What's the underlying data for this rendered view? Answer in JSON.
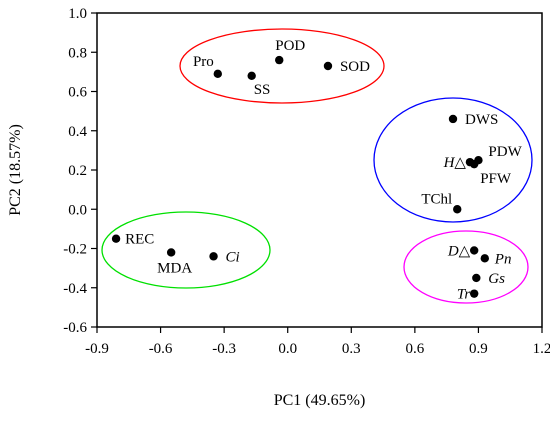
{
  "chart_data": {
    "type": "scatter",
    "xlabel": "PC1 (49.65%)",
    "ylabel": "PC2 (18.57%)",
    "xlim": [
      -0.9,
      1.2
    ],
    "ylim": [
      -0.6,
      1.0
    ],
    "xticks": [
      "-0.9",
      "-0.6",
      "-0.3",
      "0.0",
      "0.3",
      "0.6",
      "0.9",
      "1.2"
    ],
    "yticks": [
      "1.0",
      "0.8",
      "0.6",
      "0.4",
      "0.2",
      "0.0",
      "-0.2",
      "-0.4",
      "-0.6"
    ],
    "grid": false,
    "points": [
      {
        "label": "Pro",
        "x": -0.33,
        "y": 0.69,
        "italic": false
      },
      {
        "label": "SS",
        "x": -0.17,
        "y": 0.68,
        "italic": false
      },
      {
        "label": "POD",
        "x": -0.04,
        "y": 0.76,
        "italic": false
      },
      {
        "label": "SOD",
        "x": 0.19,
        "y": 0.73,
        "italic": false
      },
      {
        "label": "DWS",
        "x": 0.78,
        "y": 0.46,
        "italic": false
      },
      {
        "label": "H△",
        "x": 0.86,
        "y": 0.24,
        "italic": true
      },
      {
        "label": "PDW",
        "x": 0.9,
        "y": 0.25,
        "italic": false
      },
      {
        "label": "PFW",
        "x": 0.88,
        "y": 0.23,
        "italic": false
      },
      {
        "label": "TChl",
        "x": 0.8,
        "y": 0.0,
        "italic": false
      },
      {
        "label": "REC",
        "x": -0.81,
        "y": -0.15,
        "italic": false
      },
      {
        "label": "MDA",
        "x": -0.55,
        "y": -0.22,
        "italic": false
      },
      {
        "label": "Ci",
        "x": -0.35,
        "y": -0.24,
        "italic": true
      },
      {
        "label": "D△",
        "x": 0.88,
        "y": -0.21,
        "italic": true
      },
      {
        "label": "Pn",
        "x": 0.93,
        "y": -0.25,
        "italic": true
      },
      {
        "label": "Gs",
        "x": 0.89,
        "y": -0.35,
        "italic": true
      },
      {
        "label": "Tr",
        "x": 0.88,
        "y": -0.43,
        "italic": true
      }
    ],
    "groups": [
      {
        "name": "red-group",
        "color": "#ff0000",
        "members": [
          "Pro",
          "SS",
          "POD",
          "SOD"
        ]
      },
      {
        "name": "blue-group",
        "color": "#0000ff",
        "members": [
          "DWS",
          "H△",
          "PDW",
          "PFW",
          "TChl"
        ]
      },
      {
        "name": "green-group",
        "color": "#00e000",
        "members": [
          "REC",
          "MDA",
          "Ci"
        ]
      },
      {
        "name": "magenta-group",
        "color": "#ff00ff",
        "members": [
          "D△",
          "Pn",
          "Gs",
          "Tr"
        ]
      }
    ]
  }
}
